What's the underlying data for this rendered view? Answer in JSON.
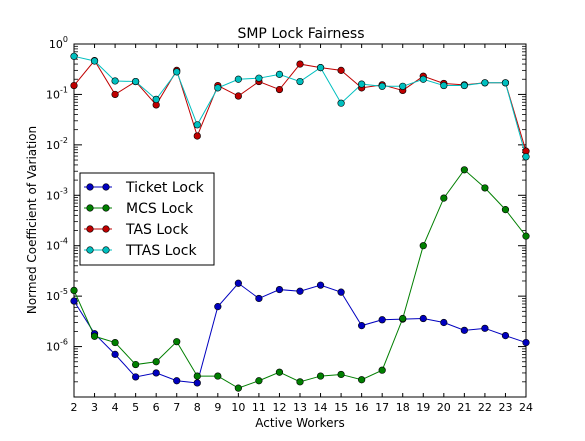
{
  "chart_data": {
    "type": "line",
    "title": "SMP Lock Fairness",
    "xlabel": "Active Workers",
    "ylabel": "Normed Coefficient of Variation",
    "x": [
      2,
      3,
      4,
      5,
      6,
      7,
      8,
      9,
      10,
      11,
      12,
      13,
      14,
      15,
      16,
      17,
      18,
      19,
      20,
      21,
      22,
      23,
      24
    ],
    "xlim": [
      2,
      24
    ],
    "yscale": "log",
    "ylim": [
      1e-07,
      1
    ],
    "y_ticks": [
      {
        "value": 1,
        "base": "10",
        "exp": "0"
      },
      {
        "value": 0.1,
        "base": "10",
        "exp": "-1"
      },
      {
        "value": 0.01,
        "base": "10",
        "exp": "-2"
      },
      {
        "value": 0.001,
        "base": "10",
        "exp": "-3"
      },
      {
        "value": 0.0001,
        "base": "10",
        "exp": "-4"
      },
      {
        "value": 1e-05,
        "base": "10",
        "exp": "-5"
      },
      {
        "value": 1e-06,
        "base": "10",
        "exp": "-6"
      }
    ],
    "legend_position": "center-left",
    "series": [
      {
        "name": "Ticket Lock",
        "color": "#0000bf",
        "values": [
          8e-06,
          1.8e-06,
          7e-07,
          2.5e-07,
          3e-07,
          2.1e-07,
          1.9e-07,
          6.2e-06,
          1.8e-05,
          9e-06,
          1.35e-05,
          1.25e-05,
          1.65e-05,
          1.2e-05,
          2.6e-06,
          3.4e-06,
          3.5e-06,
          3.6e-06,
          3e-06,
          2.1e-06,
          2.3e-06,
          1.65e-06,
          1.2e-06
        ]
      },
      {
        "name": "MCS Lock",
        "color": "#007f00",
        "values": [
          1.3e-05,
          1.6e-06,
          1.2e-06,
          4.4e-07,
          5e-07,
          1.25e-06,
          2.6e-07,
          2.6e-07,
          1.5e-07,
          2.1e-07,
          3.1e-07,
          2e-07,
          2.6e-07,
          2.8e-07,
          2.2e-07,
          3.4e-07,
          3.6e-06,
          0.0001,
          0.00088,
          0.0032,
          0.0014,
          0.00052,
          0.000155
        ]
      },
      {
        "name": "TAS Lock",
        "color": "#bf0000",
        "values": [
          0.15,
          0.47,
          0.1,
          0.18,
          0.062,
          0.3,
          0.015,
          0.15,
          0.093,
          0.18,
          0.125,
          0.4,
          0.34,
          0.3,
          0.135,
          0.155,
          0.12,
          0.23,
          0.165,
          0.155,
          0.17,
          0.17,
          0.0075
        ]
      },
      {
        "name": "TTAS Lock",
        "color": "#00bfbf",
        "values": [
          0.57,
          0.46,
          0.185,
          0.18,
          0.08,
          0.28,
          0.025,
          0.135,
          0.2,
          0.21,
          0.25,
          0.18,
          0.34,
          0.067,
          0.16,
          0.145,
          0.145,
          0.2,
          0.15,
          0.15,
          0.17,
          0.17,
          0.0058
        ]
      }
    ]
  }
}
